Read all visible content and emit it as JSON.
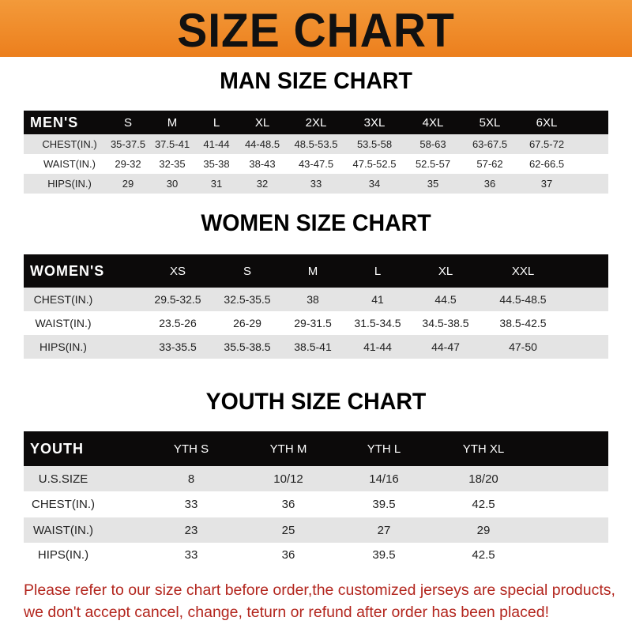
{
  "banner": {
    "title": "SIZE CHART",
    "color": "#ee8a28"
  },
  "men": {
    "heading": "MAN SIZE CHART",
    "header": [
      "MEN'S",
      "S",
      "M",
      "L",
      "XL",
      "2XL",
      "3XL",
      "4XL",
      "5XL",
      "6XL"
    ],
    "rows": [
      [
        "CHEST(IN.)",
        "35-37.5",
        "37.5-41",
        "41-44",
        "44-48.5",
        "48.5-53.5",
        "53.5-58",
        "58-63",
        "63-67.5",
        "67.5-72"
      ],
      [
        "WAIST(IN.)",
        "29-32",
        "32-35",
        "35-38",
        "38-43",
        "43-47.5",
        "47.5-52.5",
        "52.5-57",
        "57-62",
        "62-66.5"
      ],
      [
        "HIPS(IN.)",
        "29",
        "30",
        "31",
        "32",
        "33",
        "34",
        "35",
        "36",
        "37"
      ]
    ]
  },
  "women": {
    "heading": "WOMEN SIZE CHART",
    "header": [
      "WOMEN'S",
      "XS",
      "S",
      "M",
      "L",
      "XL",
      "XXL"
    ],
    "rows": [
      [
        "CHEST(IN.)",
        "29.5-32.5",
        "32.5-35.5",
        "38",
        "41",
        "44.5",
        "44.5-48.5"
      ],
      [
        "WAIST(IN.)",
        "23.5-26",
        "26-29",
        "29-31.5",
        "31.5-34.5",
        "34.5-38.5",
        "38.5-42.5"
      ],
      [
        "HIPS(IN.)",
        "33-35.5",
        "35.5-38.5",
        "38.5-41",
        "41-44",
        "44-47",
        "47-50"
      ]
    ]
  },
  "youth": {
    "heading": "YOUTH SIZE CHART",
    "header": [
      "YOUTH",
      "YTH S",
      "YTH M",
      "YTH L",
      "YTH XL"
    ],
    "rows": [
      [
        "U.S.SIZE",
        "8",
        "10/12",
        "14/16",
        "18/20"
      ],
      [
        "CHEST(IN.)",
        "33",
        "36",
        "39.5",
        "42.5"
      ],
      [
        "WAIST(IN.)",
        "23",
        "25",
        "27",
        "29"
      ],
      [
        "HIPS(IN.)",
        "33",
        "36",
        "39.5",
        "42.5"
      ]
    ]
  },
  "notice": {
    "line1": "Please refer to our size chart before order,the customized jerseys are special products,",
    "line2": "we don't accept cancel, change, teturn or refund after order has been placed!",
    "color": "#b3261e"
  }
}
